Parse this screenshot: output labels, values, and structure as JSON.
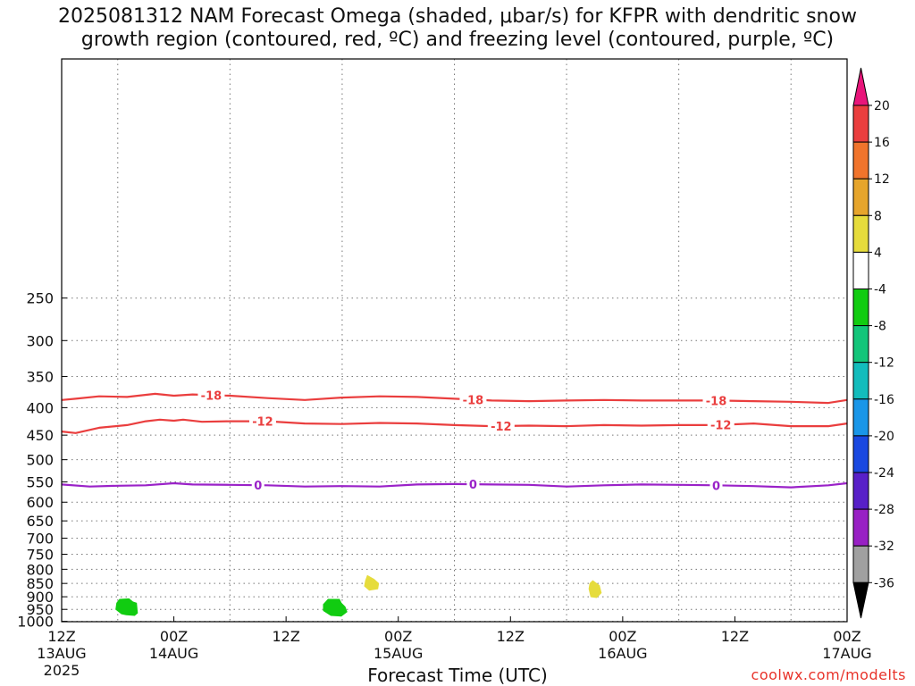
{
  "title": {
    "line1": "2025081312 NAM Forecast Omega (shaded, μbar/s) for KFPR with dendritic snow",
    "line2": "growth region (contoured, red, ºC) and freezing level (contoured, purple, ºC)"
  },
  "xlabel": "Forecast Time (UTC)",
  "credit": "coolwx.com/modelts",
  "chart_data": {
    "type": "heatmap",
    "title": "2025081312 NAM Forecast Omega (shaded, μbar/s) for KFPR with dendritic snow growth region (contoured, red, ºC) and freezing level (contoured, purple, ºC)",
    "xlabel": "Forecast Time (UTC)",
    "ylabel": "",
    "x_unit": "hours since 2025-08-13 12Z",
    "xlim": [
      0,
      84
    ],
    "ylim": [
      1030,
      200
    ],
    "y_scale": "log",
    "grid": true,
    "x_ticks": [
      {
        "v": 0,
        "l1": "12Z",
        "l2": "13AUG",
        "l3": "2025"
      },
      {
        "v": 12,
        "l1": "00Z",
        "l2": "14AUG",
        "l3": ""
      },
      {
        "v": 24,
        "l1": "12Z",
        "l2": "",
        "l3": ""
      },
      {
        "v": 36,
        "l1": "00Z",
        "l2": "15AUG",
        "l3": ""
      },
      {
        "v": 48,
        "l1": "12Z",
        "l2": "",
        "l3": ""
      },
      {
        "v": 60,
        "l1": "00Z",
        "l2": "16AUG",
        "l3": ""
      },
      {
        "v": 72,
        "l1": "12Z",
        "l2": "",
        "l3": ""
      },
      {
        "v": 84,
        "l1": "00Z",
        "l2": "17AUG",
        "l3": ""
      }
    ],
    "x_grid": [
      6,
      18,
      30,
      42,
      54,
      66,
      78
    ],
    "y_ticks": [
      250,
      300,
      350,
      400,
      450,
      500,
      550,
      600,
      650,
      700,
      750,
      800,
      850,
      900,
      950,
      1000
    ],
    "contours": [
      {
        "name": "-18",
        "color": "#ea3e3e",
        "labels": [
          16,
          44,
          70
        ],
        "points": [
          [
            0,
            387
          ],
          [
            1.5,
            385
          ],
          [
            4,
            381
          ],
          [
            7,
            382
          ],
          [
            10,
            377
          ],
          [
            12,
            380
          ],
          [
            14,
            378
          ],
          [
            18,
            380
          ],
          [
            22,
            384
          ],
          [
            26,
            387
          ],
          [
            30,
            383
          ],
          [
            34,
            381
          ],
          [
            38,
            382
          ],
          [
            42,
            385
          ],
          [
            46,
            388
          ],
          [
            50,
            389
          ],
          [
            54,
            388
          ],
          [
            58,
            387
          ],
          [
            62,
            388
          ],
          [
            66,
            388
          ],
          [
            70,
            388
          ],
          [
            74,
            389
          ],
          [
            78,
            390
          ],
          [
            82,
            392
          ],
          [
            84,
            387
          ]
        ]
      },
      {
        "name": "-12",
        "color": "#ea3e3e",
        "labels": [
          21.5,
          47,
          70.5
        ],
        "points": [
          [
            0,
            443
          ],
          [
            1.5,
            446
          ],
          [
            4,
            436
          ],
          [
            7,
            431
          ],
          [
            9,
            424
          ],
          [
            10.5,
            421
          ],
          [
            12,
            423
          ],
          [
            13,
            421
          ],
          [
            15,
            425
          ],
          [
            18,
            424
          ],
          [
            22,
            424
          ],
          [
            26,
            428
          ],
          [
            30,
            429
          ],
          [
            34,
            427
          ],
          [
            38,
            428
          ],
          [
            42,
            431
          ],
          [
            46,
            433
          ],
          [
            50,
            432
          ],
          [
            54,
            433
          ],
          [
            58,
            431
          ],
          [
            62,
            432
          ],
          [
            66,
            431
          ],
          [
            70,
            431
          ],
          [
            74,
            428
          ],
          [
            78,
            433
          ],
          [
            82,
            433
          ],
          [
            84,
            428
          ]
        ]
      },
      {
        "name": "0",
        "color": "#9a22c8",
        "labels": [
          21,
          44,
          70
        ],
        "points": [
          [
            0,
            556
          ],
          [
            3,
            561
          ],
          [
            6,
            559
          ],
          [
            9,
            558
          ],
          [
            12,
            553
          ],
          [
            14,
            556
          ],
          [
            18,
            557
          ],
          [
            22,
            558
          ],
          [
            26,
            561
          ],
          [
            30,
            560
          ],
          [
            34,
            561
          ],
          [
            38,
            556
          ],
          [
            42,
            555
          ],
          [
            46,
            556
          ],
          [
            50,
            557
          ],
          [
            54,
            561
          ],
          [
            58,
            558
          ],
          [
            62,
            556
          ],
          [
            66,
            557
          ],
          [
            70,
            558
          ],
          [
            74,
            560
          ],
          [
            78,
            563
          ],
          [
            82,
            558
          ],
          [
            84,
            553
          ]
        ]
      }
    ],
    "omega_areas": [
      {
        "value_range": [
          -8,
          -4
        ],
        "color": "#11cc11",
        "points": [
          [
            6.2,
            910
          ],
          [
            7.2,
            908
          ],
          [
            7.6,
            920
          ],
          [
            8.0,
            925
          ],
          [
            8.1,
            965
          ],
          [
            7.8,
            975
          ],
          [
            6.9,
            972
          ],
          [
            6.4,
            968
          ],
          [
            5.8,
            950
          ],
          [
            5.9,
            925
          ]
        ]
      },
      {
        "value_range": [
          -8,
          -4
        ],
        "color": "#11cc11",
        "points": [
          [
            28.5,
            910
          ],
          [
            29.7,
            910
          ],
          [
            29.9,
            925
          ],
          [
            30.3,
            940
          ],
          [
            30.5,
            960
          ],
          [
            29.9,
            978
          ],
          [
            28.8,
            975
          ],
          [
            28.0,
            955
          ],
          [
            28.0,
            930
          ]
        ]
      },
      {
        "value_range": [
          4,
          8
        ],
        "color": "#e6dc3c",
        "points": [
          [
            32.7,
            822
          ],
          [
            33.4,
            835
          ],
          [
            33.9,
            850
          ],
          [
            33.8,
            870
          ],
          [
            32.9,
            875
          ],
          [
            32.4,
            860
          ],
          [
            32.5,
            840
          ]
        ]
      },
      {
        "value_range": [
          4,
          8
        ],
        "color": "#e6dc3c",
        "points": [
          [
            56.8,
            840
          ],
          [
            57.5,
            858
          ],
          [
            57.7,
            885
          ],
          [
            57.2,
            903
          ],
          [
            56.6,
            900
          ],
          [
            56.4,
            870
          ],
          [
            56.5,
            850
          ]
        ]
      }
    ],
    "colorbar": {
      "unit": "μbar/s",
      "labels": [
        "20",
        "16",
        "12",
        "8",
        "4",
        "-4",
        "-8",
        "-12",
        "-16",
        "-20",
        "-24",
        "-28",
        "-32",
        "-36"
      ],
      "colors": [
        "#ea3e3e",
        "#f0742c",
        "#e6a52c",
        "#e6dc3c",
        "#ffffff",
        "#11cc11",
        "#13c57a",
        "#13bcbc",
        "#1a96e8",
        "#1a48e0",
        "#5820c8",
        "#9820c4",
        "#a0a0a0"
      ],
      "top_arrow": "#e8157a",
      "bottom_arrow": "#000000"
    },
    "ground_color": "#a0522d"
  }
}
